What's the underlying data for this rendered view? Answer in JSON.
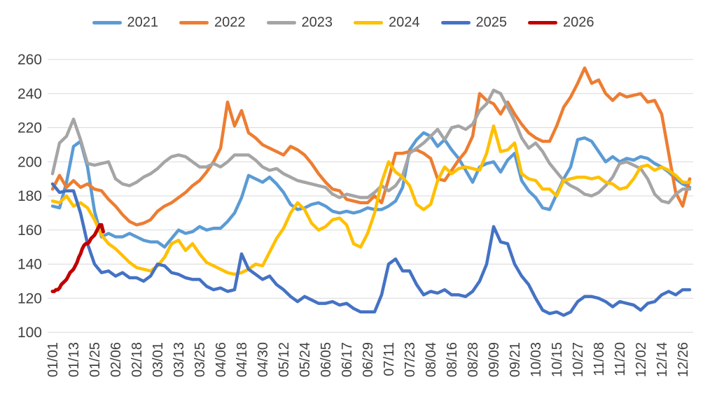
{
  "chart_data": {
    "type": "line",
    "title": "",
    "legend_position": "top",
    "grid": true,
    "background_color": "#FFFFFF",
    "gridline_color": "#D9D9D9",
    "text_color": "#404040",
    "x_axis": {
      "label": "",
      "tick_labels": [
        "01/01",
        "01/13",
        "01/25",
        "02/06",
        "02/18",
        "03/01",
        "03/13",
        "03/25",
        "04/06",
        "04/18",
        "04/30",
        "05/12",
        "05/24",
        "06/05",
        "06/17",
        "06/29",
        "07/11",
        "07/23",
        "08/04",
        "08/16",
        "08/28",
        "09/09",
        "09/21",
        "10/03",
        "10/15",
        "10/27",
        "11/08",
        "11/20",
        "12/02",
        "12/14",
        "12/26"
      ],
      "tick_interval_days": 12,
      "note": "daily series over one leap year; x position = day of year"
    },
    "y_axis": {
      "label": "",
      "min": 100,
      "max": 260,
      "tick_step": 20,
      "tick_labels": [
        "100",
        "120",
        "140",
        "160",
        "180",
        "200",
        "220",
        "240",
        "260"
      ]
    },
    "series": [
      {
        "name": "2021",
        "color": "#5B9BD5",
        "start_day": 0,
        "sample_interval_days": 4,
        "values": [
          174,
          173,
          188,
          209,
          212,
          197,
          171,
          156,
          158,
          156,
          156,
          158,
          156,
          154,
          153,
          153,
          150,
          155,
          160,
          158,
          159,
          162,
          160,
          161,
          161,
          165,
          170,
          179,
          192,
          190,
          188,
          191,
          187,
          182,
          175,
          172,
          173,
          175,
          176,
          174,
          171,
          170,
          171,
          170,
          171,
          173,
          172,
          172,
          174,
          177,
          185,
          207,
          213,
          217,
          215,
          209,
          213,
          207,
          202,
          195,
          188,
          197,
          199,
          200,
          194,
          201,
          205,
          189,
          183,
          179,
          173,
          172,
          181,
          190,
          197,
          213,
          214,
          212,
          206,
          200,
          203,
          200,
          202,
          201,
          203,
          202,
          199,
          197,
          194,
          190,
          187,
          185
        ]
      },
      {
        "name": "2022",
        "color": "#ED7D31",
        "start_day": 0,
        "sample_interval_days": 4,
        "values": [
          184,
          192,
          185,
          189,
          185,
          187,
          184,
          183,
          178,
          174,
          169,
          165,
          163,
          164,
          166,
          171,
          174,
          176,
          179,
          182,
          186,
          189,
          194,
          200,
          208,
          235,
          221,
          230,
          217,
          214,
          210,
          208,
          206,
          204,
          209,
          207,
          204,
          199,
          193,
          188,
          184,
          183,
          178,
          177,
          176,
          176,
          180,
          176,
          190,
          205,
          205,
          206,
          207,
          205,
          202,
          190,
          189,
          195,
          201,
          206,
          215,
          240,
          236,
          234,
          228,
          235,
          228,
          222,
          217,
          214,
          212,
          212,
          221,
          232,
          238,
          246,
          255,
          246,
          248,
          240,
          236,
          240,
          238,
          239,
          240,
          235,
          236,
          228,
          205,
          182,
          174,
          190
        ]
      },
      {
        "name": "2023",
        "color": "#A5A5A5",
        "start_day": 0,
        "sample_interval_days": 4,
        "values": [
          193,
          211,
          215,
          225,
          213,
          199,
          198,
          199,
          200,
          190,
          187,
          186,
          188,
          191,
          193,
          196,
          200,
          203,
          204,
          203,
          200,
          197,
          197,
          199,
          197,
          200,
          204,
          204,
          204,
          201,
          197,
          195,
          196,
          193,
          191,
          189,
          188,
          187,
          186,
          185,
          181,
          179,
          181,
          180,
          179,
          179,
          182,
          186,
          183,
          186,
          192,
          205,
          208,
          211,
          215,
          219,
          213,
          220,
          221,
          219,
          222,
          230,
          234,
          242,
          240,
          232,
          224,
          214,
          208,
          211,
          206,
          199,
          194,
          189,
          186,
          184,
          181,
          180,
          182,
          186,
          191,
          199,
          200,
          198,
          196,
          190,
          181,
          177,
          176,
          181,
          184,
          184
        ]
      },
      {
        "name": "2024",
        "color": "#FFC000",
        "start_day": 0,
        "sample_interval_days": 4,
        "values": [
          177,
          176,
          180,
          174,
          176,
          173,
          166,
          157,
          152,
          149,
          145,
          141,
          138,
          137,
          136,
          139,
          144,
          152,
          154,
          148,
          152,
          146,
          141,
          139,
          137,
          135,
          134,
          135,
          137,
          140,
          139,
          147,
          155,
          161,
          170,
          176,
          172,
          164,
          160,
          162,
          166,
          167,
          163,
          152,
          150,
          158,
          170,
          188,
          200,
          194,
          191,
          186,
          175,
          172,
          175,
          189,
          197,
          193,
          196,
          197,
          196,
          195,
          205,
          221,
          206,
          207,
          211,
          193,
          190,
          189,
          184,
          184,
          180,
          189,
          190,
          191,
          191,
          190,
          191,
          188,
          187,
          184,
          185,
          190,
          197,
          198,
          195,
          197,
          195,
          192,
          188,
          188
        ]
      },
      {
        "name": "2025",
        "color": "#4472C4",
        "start_day": 0,
        "sample_interval_days": 4,
        "values": [
          187,
          182,
          183,
          183,
          170,
          152,
          140,
          135,
          136,
          133,
          135,
          132,
          132,
          130,
          133,
          140,
          139,
          135,
          134,
          132,
          131,
          131,
          127,
          125,
          126,
          124,
          125,
          146,
          137,
          134,
          131,
          133,
          128,
          125,
          121,
          118,
          121,
          119,
          117,
          117,
          118,
          116,
          117,
          114,
          112,
          112,
          112,
          122,
          140,
          143,
          136,
          136,
          128,
          122,
          124,
          123,
          125,
          122,
          122,
          121,
          124,
          130,
          140,
          162,
          153,
          152,
          140,
          133,
          128,
          120,
          113,
          111,
          112,
          110,
          112,
          118,
          121,
          121,
          120,
          118,
          115,
          118,
          117,
          116,
          113,
          117,
          118,
          122,
          124,
          122,
          125,
          125
        ]
      },
      {
        "name": "2026",
        "color": "#C00000",
        "start_day": 0,
        "sample_interval_days": 1,
        "values": [
          124,
          124,
          125,
          125,
          126,
          128,
          129,
          130,
          131,
          133,
          135,
          136,
          137,
          139,
          141,
          144,
          146,
          149,
          151,
          152,
          152,
          153,
          155,
          156,
          157,
          159,
          161,
          163,
          163,
          159
        ]
      }
    ]
  }
}
